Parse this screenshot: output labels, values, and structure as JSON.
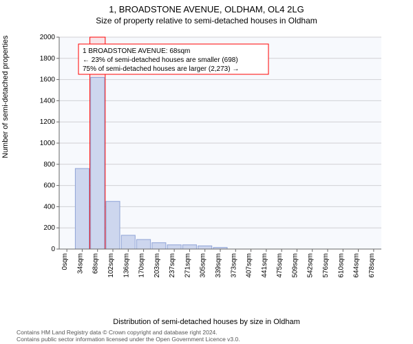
{
  "title": "1, BROADSTONE AVENUE, OLDHAM, OL4 2LG",
  "subtitle": "Size of property relative to semi-detached houses in Oldham",
  "chart": {
    "type": "histogram",
    "ylabel": "Number of semi-detached properties",
    "xlabel": "Distribution of semi-detached houses by size in Oldham",
    "ylim": [
      0,
      2000
    ],
    "ytick_step": 200,
    "x_categories": [
      "0sqm",
      "34sqm",
      "68sqm",
      "102sqm",
      "136sqm",
      "170sqm",
      "203sqm",
      "237sqm",
      "271sqm",
      "305sqm",
      "339sqm",
      "373sqm",
      "407sqm",
      "441sqm",
      "475sqm",
      "509sqm",
      "542sqm",
      "576sqm",
      "610sqm",
      "644sqm",
      "678sqm"
    ],
    "bar_values": [
      0,
      760,
      1620,
      450,
      130,
      90,
      60,
      40,
      40,
      30,
      15,
      0,
      0,
      0,
      0,
      0,
      0,
      0,
      0,
      0,
      0
    ],
    "bar_fill": "#cdd6ee",
    "bar_stroke": "#8fa3d6",
    "highlight_index": 2,
    "highlight_fill": "rgba(255,0,0,0.08)",
    "highlight_stroke": "#ff0000",
    "background_color": "#f7f9fd",
    "grid_color": "#d0d0d4",
    "axis_color": "#666666",
    "tick_font_size": 10,
    "title_font_size": 13,
    "subtitle_font_size": 12,
    "label_font_size": 11,
    "box": {
      "line1": "1 BROADSTONE AVENUE: 68sqm",
      "line2": "← 23% of semi-detached houses are smaller (698)",
      "line3": "75% of semi-detached houses are larger (2,273) →",
      "border_color": "#ff0000",
      "background_color": "#ffffff",
      "font_size": 10
    }
  },
  "footer": {
    "line1": "Contains HM Land Registry data © Crown copyright and database right 2024.",
    "line2": "Contains public sector information licensed under the Open Government Licence v3.0."
  }
}
